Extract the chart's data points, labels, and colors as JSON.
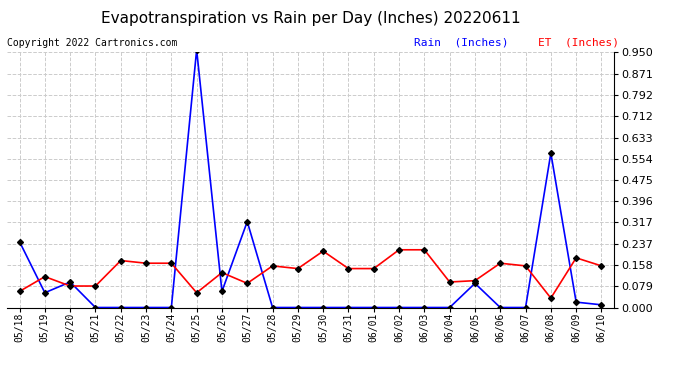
{
  "title": "Evapotranspiration vs Rain per Day (Inches) 20220611",
  "copyright": "Copyright 2022 Cartronics.com",
  "background_color": "#ffffff",
  "grid_color": "#cccccc",
  "dates": [
    "05/18",
    "05/19",
    "05/20",
    "05/21",
    "05/22",
    "05/23",
    "05/24",
    "05/25",
    "05/26",
    "05/27",
    "05/28",
    "05/29",
    "05/30",
    "05/31",
    "06/01",
    "06/02",
    "06/03",
    "06/04",
    "06/05",
    "06/06",
    "06/07",
    "06/08",
    "06/09",
    "06/10"
  ],
  "rain": [
    0.245,
    0.055,
    0.095,
    0.0,
    0.0,
    0.0,
    0.0,
    0.96,
    0.06,
    0.32,
    0.0,
    0.0,
    0.0,
    0.0,
    0.0,
    0.0,
    0.0,
    0.0,
    0.09,
    0.0,
    0.0,
    0.575,
    0.02,
    0.01
  ],
  "et": [
    0.06,
    0.115,
    0.08,
    0.08,
    0.175,
    0.165,
    0.165,
    0.055,
    0.13,
    0.09,
    0.155,
    0.145,
    0.21,
    0.145,
    0.145,
    0.215,
    0.215,
    0.095,
    0.1,
    0.165,
    0.155,
    0.035,
    0.185,
    0.155
  ],
  "rain_color": "#0000ff",
  "et_color": "#ff0000",
  "marker": "D",
  "marker_size": 3,
  "marker_color": "#000000",
  "line_width": 1.2,
  "ylim": [
    0.0,
    0.95
  ],
  "yticks": [
    0.0,
    0.079,
    0.158,
    0.237,
    0.317,
    0.396,
    0.475,
    0.554,
    0.633,
    0.712,
    0.792,
    0.871,
    0.95
  ],
  "legend_rain": "Rain  (Inches)",
  "legend_et": "ET  (Inches)",
  "title_fontsize": 11,
  "copyright_fontsize": 7,
  "legend_fontsize": 8,
  "tick_fontsize": 7,
  "ytick_fontsize": 8
}
